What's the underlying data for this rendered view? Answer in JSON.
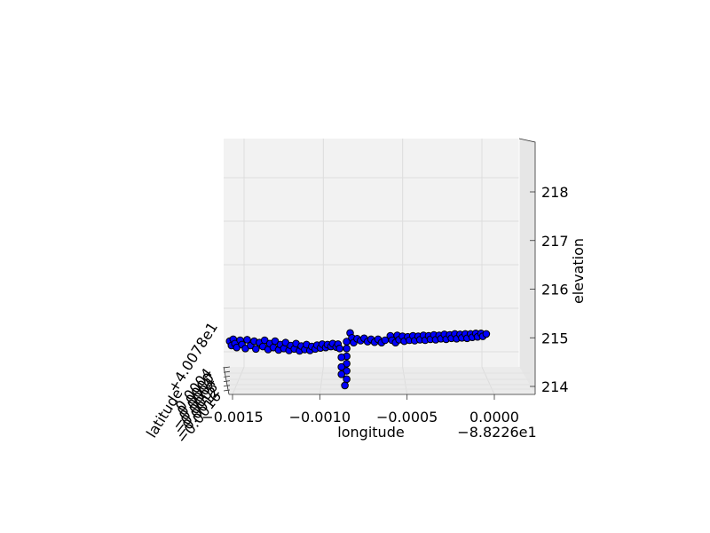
{
  "chart_data": {
    "type": "scatter",
    "projection": "3d",
    "title": "",
    "xlabel": "longitude",
    "ylabel": "latitude",
    "zlabel": "elevation",
    "x_offset_label": "−8.8226e1",
    "y_offset_label": "+4.0078e1",
    "x_ticks": [
      "−0.0015",
      "−0.0010",
      "−0.0005",
      "0.0000"
    ],
    "x_tick_values": [
      -0.0015,
      -0.001,
      -0.0005,
      0.0
    ],
    "y_ticks": [
      "−0.0016",
      "−0.0012",
      "−0.0008",
      "−0.0004",
      "0.0000",
      "0.0004"
    ],
    "z_ticks": [
      "214",
      "215",
      "216",
      "217",
      "218"
    ],
    "z_tick_values": [
      214,
      215,
      216,
      217,
      218
    ],
    "xlim": [
      -0.00153,
      0.00027
    ],
    "zlim": [
      213.9,
      218.9
    ],
    "grid": true,
    "marker_color": "#0000ff",
    "marker_edge_color": "#000000",
    "points": [
      [
        -0.00148,
        214.93
      ],
      [
        -0.00147,
        214.84
      ],
      [
        -0.00146,
        214.97
      ],
      [
        -0.00145,
        214.88
      ],
      [
        -0.00144,
        214.8
      ],
      [
        -0.00142,
        214.95
      ],
      [
        -0.00141,
        214.86
      ],
      [
        -0.00139,
        214.78
      ],
      [
        -0.00138,
        214.96
      ],
      [
        -0.00136,
        214.84
      ],
      [
        -0.00134,
        214.93
      ],
      [
        -0.00133,
        214.77
      ],
      [
        -0.00131,
        214.9
      ],
      [
        -0.00129,
        214.82
      ],
      [
        -0.00128,
        214.95
      ],
      [
        -0.00126,
        214.76
      ],
      [
        -0.00125,
        214.88
      ],
      [
        -0.00123,
        214.8
      ],
      [
        -0.00122,
        214.93
      ],
      [
        -0.0012,
        214.75
      ],
      [
        -0.00119,
        214.86
      ],
      [
        -0.00117,
        214.78
      ],
      [
        -0.00116,
        214.9
      ],
      [
        -0.00114,
        214.74
      ],
      [
        -0.00113,
        214.84
      ],
      [
        -0.00111,
        214.77
      ],
      [
        -0.0011,
        214.88
      ],
      [
        -0.00108,
        214.73
      ],
      [
        -0.00107,
        214.83
      ],
      [
        -0.00105,
        214.76
      ],
      [
        -0.00104,
        214.86
      ],
      [
        -0.00102,
        214.74
      ],
      [
        -0.00101,
        214.82
      ],
      [
        -0.00099,
        214.77
      ],
      [
        -0.00098,
        214.85
      ],
      [
        -0.00096,
        214.79
      ],
      [
        -0.00095,
        214.87
      ],
      [
        -0.00093,
        214.8
      ],
      [
        -0.00092,
        214.86
      ],
      [
        -0.0009,
        214.82
      ],
      [
        -0.00089,
        214.88
      ],
      [
        -0.00087,
        214.81
      ],
      [
        -0.00086,
        214.87
      ],
      [
        -0.00085,
        214.78
      ],
      [
        -0.00081,
        214.92
      ],
      [
        -0.00081,
        214.78
      ],
      [
        -0.00081,
        214.62
      ],
      [
        -0.00081,
        214.47
      ],
      [
        -0.00081,
        214.32
      ],
      [
        -0.00081,
        214.15
      ],
      [
        -0.00082,
        214.02
      ],
      [
        -0.00084,
        214.6
      ],
      [
        -0.00084,
        214.4
      ],
      [
        -0.00084,
        214.25
      ],
      [
        -0.00079,
        215.1
      ],
      [
        -0.00078,
        215.0
      ],
      [
        -0.00077,
        214.9
      ],
      [
        -0.00075,
        214.98
      ],
      [
        -0.00073,
        214.94
      ],
      [
        -0.00071,
        214.99
      ],
      [
        -0.00069,
        214.92
      ],
      [
        -0.00067,
        214.97
      ],
      [
        -0.00065,
        214.91
      ],
      [
        -0.00063,
        214.97
      ],
      [
        -0.00061,
        214.9
      ],
      [
        -0.00059,
        214.95
      ],
      [
        -0.00056,
        215.04
      ],
      [
        -0.00055,
        214.95
      ],
      [
        -0.00053,
        214.9
      ],
      [
        -0.00052,
        215.05
      ],
      [
        -0.00051,
        214.96
      ],
      [
        -0.00049,
        215.03
      ],
      [
        -0.00048,
        214.93
      ],
      [
        -0.00046,
        215.02
      ],
      [
        -0.00045,
        214.95
      ],
      [
        -0.00043,
        215.04
      ],
      [
        -0.00042,
        214.94
      ],
      [
        -0.0004,
        215.03
      ],
      [
        -0.00039,
        214.96
      ],
      [
        -0.00037,
        215.05
      ],
      [
        -0.00036,
        214.95
      ],
      [
        -0.00034,
        215.04
      ],
      [
        -0.00033,
        214.97
      ],
      [
        -0.00031,
        215.06
      ],
      [
        -0.0003,
        214.96
      ],
      [
        -0.00028,
        215.05
      ],
      [
        -0.00027,
        214.98
      ],
      [
        -0.00025,
        215.07
      ],
      [
        -0.00024,
        214.97
      ],
      [
        -0.00022,
        215.06
      ],
      [
        -0.00021,
        214.99
      ],
      [
        -0.00019,
        215.08
      ],
      [
        -0.00018,
        214.98
      ],
      [
        -0.00016,
        215.07
      ],
      [
        -0.00015,
        215.0
      ],
      [
        -0.00013,
        215.08
      ],
      [
        -0.00012,
        214.99
      ],
      [
        -0.0001,
        215.08
      ],
      [
        -9e-05,
        215.01
      ],
      [
        -7e-05,
        215.09
      ],
      [
        -6e-05,
        215.02
      ],
      [
        -4e-05,
        215.09
      ],
      [
        -3e-05,
        215.03
      ],
      [
        -1e-05,
        215.08
      ]
    ]
  }
}
